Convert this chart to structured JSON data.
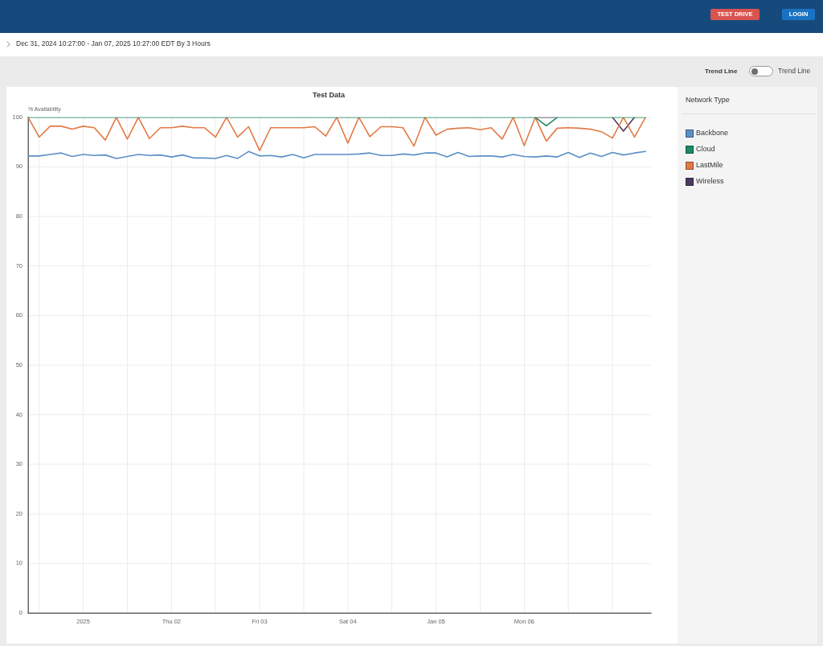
{
  "chart_data": {
    "type": "line",
    "title": "Test Data",
    "subtitle": "Dec 31, 2024 10:27:00 - Jan 07, 2025 10:27:00 EDT By 3 Hours",
    "ylabel": "% Availability",
    "legend_title": "Network Type",
    "annotations": [
      "TEST DRIVE",
      "LOGIN",
      "Trend Line",
      "Trend Line"
    ],
    "x": [
      "2024-12-31T09:00",
      "2024-12-31T12:00",
      "2024-12-31T15:00",
      "2024-12-31T18:00",
      "2024-12-31T21:00",
      "2025-01-01T00:00",
      "2025-01-01T03:00",
      "2025-01-01T06:00",
      "2025-01-01T09:00",
      "2025-01-01T12:00",
      "2025-01-01T15:00",
      "2025-01-01T18:00",
      "2025-01-01T21:00",
      "2025-01-02T00:00",
      "2025-01-02T03:00",
      "2025-01-02T06:00",
      "2025-01-02T09:00",
      "2025-01-02T12:00",
      "2025-01-02T15:00",
      "2025-01-02T18:00",
      "2025-01-02T21:00",
      "2025-01-03T00:00",
      "2025-01-03T03:00",
      "2025-01-03T06:00",
      "2025-01-03T09:00",
      "2025-01-03T12:00",
      "2025-01-03T15:00",
      "2025-01-03T18:00",
      "2025-01-03T21:00",
      "2025-01-04T00:00",
      "2025-01-04T03:00",
      "2025-01-04T06:00",
      "2025-01-04T09:00",
      "2025-01-04T12:00",
      "2025-01-04T15:00",
      "2025-01-04T18:00",
      "2025-01-04T21:00",
      "2025-01-05T00:00",
      "2025-01-05T03:00",
      "2025-01-05T06:00",
      "2025-01-05T09:00",
      "2025-01-05T12:00",
      "2025-01-05T15:00",
      "2025-01-05T18:00",
      "2025-01-05T21:00",
      "2025-01-06T00:00",
      "2025-01-06T03:00",
      "2025-01-06T06:00",
      "2025-01-06T09:00",
      "2025-01-06T12:00",
      "2025-01-06T15:00",
      "2025-01-06T18:00",
      "2025-01-06T21:00",
      "2025-01-07T00:00",
      "2025-01-07T03:00",
      "2025-01-07T06:00",
      "2025-01-07T09:00"
    ],
    "series": [
      {
        "name": "Backbone",
        "color": "#5b8fc7",
        "values": [
          92.2,
          92.2,
          92.5,
          92.8,
          92.1,
          92.5,
          92.3,
          92.4,
          91.7,
          92.1,
          92.5,
          92.3,
          92.4,
          92.0,
          92.4,
          91.8,
          91.8,
          91.7,
          92.3,
          91.7,
          93.1,
          92.2,
          92.3,
          92.0,
          92.5,
          91.8,
          92.5,
          92.5,
          92.5,
          92.5,
          92.6,
          92.8,
          92.3,
          92.3,
          92.6,
          92.4,
          92.8,
          92.8,
          92.0,
          92.9,
          92.1,
          92.2,
          92.2,
          92.0,
          92.5,
          92.1,
          92.0,
          92.2,
          92.0,
          92.9,
          91.9,
          92.8,
          92.1,
          92.9,
          92.4,
          92.8,
          93.1
        ]
      },
      {
        "name": "Cloud",
        "color": "#1d8a60",
        "values": [
          100,
          100,
          100,
          100,
          100,
          100,
          100,
          100,
          100,
          100,
          100,
          100,
          100,
          100,
          100,
          100,
          100,
          100,
          100,
          100,
          100,
          100,
          100,
          100,
          100,
          100,
          100,
          100,
          100,
          100,
          100,
          100,
          100,
          100,
          100,
          100,
          100,
          100,
          100,
          100,
          100,
          100,
          100,
          100,
          100,
          100,
          100,
          98.3,
          100,
          100,
          100,
          100,
          100,
          100,
          100,
          100,
          100
        ]
      },
      {
        "name": "LastMile",
        "color": "#e27a45",
        "values": [
          100,
          96.0,
          98.2,
          98.2,
          97.6,
          98.2,
          97.9,
          95.4,
          100,
          95.6,
          100,
          95.7,
          97.9,
          97.9,
          98.2,
          97.9,
          97.9,
          96.0,
          100,
          96.0,
          98.1,
          93.3,
          97.9,
          97.9,
          97.9,
          97.9,
          98.1,
          96.2,
          100,
          94.8,
          100,
          96.1,
          98.1,
          98.1,
          97.9,
          94.2,
          100,
          96.4,
          97.6,
          97.8,
          97.9,
          97.5,
          97.9,
          95.6,
          100,
          94.3,
          100,
          95.2,
          97.8,
          97.9,
          97.8,
          97.6,
          97.1,
          95.8,
          100,
          96.0,
          100
        ]
      },
      {
        "name": "Wireless",
        "color": "#4e3a5e",
        "values": [
          null,
          null,
          null,
          null,
          null,
          null,
          null,
          null,
          null,
          null,
          null,
          null,
          null,
          null,
          null,
          null,
          null,
          null,
          null,
          null,
          null,
          null,
          null,
          null,
          null,
          null,
          null,
          null,
          null,
          null,
          null,
          null,
          null,
          null,
          null,
          null,
          null,
          null,
          null,
          null,
          null,
          null,
          null,
          null,
          null,
          null,
          100,
          100,
          100,
          null,
          null,
          null,
          null,
          100,
          97.2,
          100,
          null
        ]
      }
    ],
    "xlim": [
      "2024-12-31T09:00",
      "2025-01-07T10:30"
    ],
    "xticks": [
      {
        "value": "2024-12-31T12:00",
        "label": null
      },
      {
        "value": "2025-01-01T00:00",
        "label": "2025"
      },
      {
        "value": "2025-01-01T12:00",
        "label": null
      },
      {
        "value": "2025-01-02T00:00",
        "label": "Thu 02"
      },
      {
        "value": "2025-01-02T12:00",
        "label": null
      },
      {
        "value": "2025-01-03T00:00",
        "label": "Fri 03"
      },
      {
        "value": "2025-01-03T12:00",
        "label": null
      },
      {
        "value": "2025-01-04T00:00",
        "label": "Sat 04"
      },
      {
        "value": "2025-01-04T12:00",
        "label": null
      },
      {
        "value": "2025-01-05T00:00",
        "label": "Jan 05"
      },
      {
        "value": "2025-01-05T12:00",
        "label": null
      },
      {
        "value": "2025-01-06T00:00",
        "label": "Mon 06"
      },
      {
        "value": "2025-01-06T12:00",
        "label": null
      },
      {
        "value": "2025-01-07T00:00",
        "label": null
      }
    ],
    "ylim": [
      0,
      100
    ],
    "yticks": [
      0,
      10,
      20,
      30,
      40,
      50,
      60,
      70,
      80,
      90,
      100
    ],
    "grid": true,
    "legend": "right"
  }
}
